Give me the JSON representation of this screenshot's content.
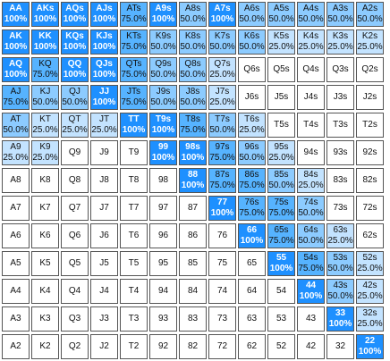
{
  "grid": {
    "rows": [
      [
        {
          "hand": "AA",
          "freq": "100%"
        },
        {
          "hand": "AKs",
          "freq": "100%"
        },
        {
          "hand": "AQs",
          "freq": "100%"
        },
        {
          "hand": "AJs",
          "freq": "100%"
        },
        {
          "hand": "ATs",
          "freq": "75.0%"
        },
        {
          "hand": "A9s",
          "freq": "100%"
        },
        {
          "hand": "A8s",
          "freq": "50.0%"
        },
        {
          "hand": "A7s",
          "freq": "100%"
        },
        {
          "hand": "A6s",
          "freq": "50.0%"
        },
        {
          "hand": "A5s",
          "freq": "50.0%"
        },
        {
          "hand": "A4s",
          "freq": "50.0%"
        },
        {
          "hand": "A3s",
          "freq": "50.0%"
        },
        {
          "hand": "A2s",
          "freq": "50.0%"
        }
      ],
      [
        {
          "hand": "AK",
          "freq": "100%"
        },
        {
          "hand": "KK",
          "freq": "100%"
        },
        {
          "hand": "KQs",
          "freq": "100%"
        },
        {
          "hand": "KJs",
          "freq": "100%"
        },
        {
          "hand": "KTs",
          "freq": "75.0%"
        },
        {
          "hand": "K9s",
          "freq": "50.0%"
        },
        {
          "hand": "K8s",
          "freq": "50.0%"
        },
        {
          "hand": "K7s",
          "freq": "50.0%"
        },
        {
          "hand": "K6s",
          "freq": "50.0%"
        },
        {
          "hand": "K5s",
          "freq": "25.0%"
        },
        {
          "hand": "K4s",
          "freq": "25.0%"
        },
        {
          "hand": "K3s",
          "freq": "25.0%"
        },
        {
          "hand": "K2s",
          "freq": "25.0%"
        }
      ],
      [
        {
          "hand": "AQ",
          "freq": "100%"
        },
        {
          "hand": "KQ",
          "freq": "75.0%"
        },
        {
          "hand": "QQ",
          "freq": "100%"
        },
        {
          "hand": "QJs",
          "freq": "100%"
        },
        {
          "hand": "QTs",
          "freq": "75.0%"
        },
        {
          "hand": "Q9s",
          "freq": "50.0%"
        },
        {
          "hand": "Q8s",
          "freq": "50.0%"
        },
        {
          "hand": "Q7s",
          "freq": "25.0%"
        },
        {
          "hand": "Q6s",
          "freq": ""
        },
        {
          "hand": "Q5s",
          "freq": ""
        },
        {
          "hand": "Q4s",
          "freq": ""
        },
        {
          "hand": "Q3s",
          "freq": ""
        },
        {
          "hand": "Q2s",
          "freq": ""
        }
      ],
      [
        {
          "hand": "AJ",
          "freq": "75.0%"
        },
        {
          "hand": "KJ",
          "freq": "50.0%"
        },
        {
          "hand": "QJ",
          "freq": "50.0%"
        },
        {
          "hand": "JJ",
          "freq": "100%"
        },
        {
          "hand": "JTs",
          "freq": "75.0%"
        },
        {
          "hand": "J9s",
          "freq": "50.0%"
        },
        {
          "hand": "J8s",
          "freq": "50.0%"
        },
        {
          "hand": "J7s",
          "freq": "25.0%"
        },
        {
          "hand": "J6s",
          "freq": ""
        },
        {
          "hand": "J5s",
          "freq": ""
        },
        {
          "hand": "J4s",
          "freq": ""
        },
        {
          "hand": "J3s",
          "freq": ""
        },
        {
          "hand": "J2s",
          "freq": ""
        }
      ],
      [
        {
          "hand": "AT",
          "freq": "50.0%"
        },
        {
          "hand": "KT",
          "freq": "25.0%"
        },
        {
          "hand": "QT",
          "freq": "25.0%"
        },
        {
          "hand": "JT",
          "freq": "25.0%"
        },
        {
          "hand": "TT",
          "freq": "100%"
        },
        {
          "hand": "T9s",
          "freq": "100%"
        },
        {
          "hand": "T8s",
          "freq": "75.0%"
        },
        {
          "hand": "T7s",
          "freq": "50.0%"
        },
        {
          "hand": "T6s",
          "freq": "25.0%"
        },
        {
          "hand": "T5s",
          "freq": ""
        },
        {
          "hand": "T4s",
          "freq": ""
        },
        {
          "hand": "T3s",
          "freq": ""
        },
        {
          "hand": "T2s",
          "freq": ""
        }
      ],
      [
        {
          "hand": "A9",
          "freq": "25.0%"
        },
        {
          "hand": "K9",
          "freq": "25.0%"
        },
        {
          "hand": "Q9",
          "freq": ""
        },
        {
          "hand": "J9",
          "freq": ""
        },
        {
          "hand": "T9",
          "freq": ""
        },
        {
          "hand": "99",
          "freq": "100%"
        },
        {
          "hand": "98s",
          "freq": "100%"
        },
        {
          "hand": "97s",
          "freq": "75.0%"
        },
        {
          "hand": "96s",
          "freq": "50.0%"
        },
        {
          "hand": "95s",
          "freq": "25.0%"
        },
        {
          "hand": "94s",
          "freq": ""
        },
        {
          "hand": "93s",
          "freq": ""
        },
        {
          "hand": "92s",
          "freq": ""
        }
      ],
      [
        {
          "hand": "A8",
          "freq": ""
        },
        {
          "hand": "K8",
          "freq": ""
        },
        {
          "hand": "Q8",
          "freq": ""
        },
        {
          "hand": "J8",
          "freq": ""
        },
        {
          "hand": "T8",
          "freq": ""
        },
        {
          "hand": "98",
          "freq": ""
        },
        {
          "hand": "88",
          "freq": "100%"
        },
        {
          "hand": "87s",
          "freq": "75.0%"
        },
        {
          "hand": "86s",
          "freq": "75.0%"
        },
        {
          "hand": "85s",
          "freq": "50.0%"
        },
        {
          "hand": "84s",
          "freq": "25.0%"
        },
        {
          "hand": "83s",
          "freq": ""
        },
        {
          "hand": "82s",
          "freq": ""
        }
      ],
      [
        {
          "hand": "A7",
          "freq": ""
        },
        {
          "hand": "K7",
          "freq": ""
        },
        {
          "hand": "Q7",
          "freq": ""
        },
        {
          "hand": "J7",
          "freq": ""
        },
        {
          "hand": "T7",
          "freq": ""
        },
        {
          "hand": "97",
          "freq": ""
        },
        {
          "hand": "87",
          "freq": ""
        },
        {
          "hand": "77",
          "freq": "100%"
        },
        {
          "hand": "76s",
          "freq": "75.0%"
        },
        {
          "hand": "75s",
          "freq": "75.0%"
        },
        {
          "hand": "74s",
          "freq": "50.0%"
        },
        {
          "hand": "73s",
          "freq": ""
        },
        {
          "hand": "72s",
          "freq": ""
        }
      ],
      [
        {
          "hand": "A6",
          "freq": ""
        },
        {
          "hand": "K6",
          "freq": ""
        },
        {
          "hand": "Q6",
          "freq": ""
        },
        {
          "hand": "J6",
          "freq": ""
        },
        {
          "hand": "T6",
          "freq": ""
        },
        {
          "hand": "96",
          "freq": ""
        },
        {
          "hand": "86",
          "freq": ""
        },
        {
          "hand": "76",
          "freq": ""
        },
        {
          "hand": "66",
          "freq": "100%"
        },
        {
          "hand": "65s",
          "freq": "75.0%"
        },
        {
          "hand": "64s",
          "freq": "50.0%"
        },
        {
          "hand": "63s",
          "freq": "25.0%"
        },
        {
          "hand": "62s",
          "freq": ""
        }
      ],
      [
        {
          "hand": "A5",
          "freq": ""
        },
        {
          "hand": "K5",
          "freq": ""
        },
        {
          "hand": "Q5",
          "freq": ""
        },
        {
          "hand": "J5",
          "freq": ""
        },
        {
          "hand": "T5",
          "freq": ""
        },
        {
          "hand": "95",
          "freq": ""
        },
        {
          "hand": "85",
          "freq": ""
        },
        {
          "hand": "75",
          "freq": ""
        },
        {
          "hand": "65",
          "freq": ""
        },
        {
          "hand": "55",
          "freq": "100%"
        },
        {
          "hand": "54s",
          "freq": "75.0%"
        },
        {
          "hand": "53s",
          "freq": "50.0%"
        },
        {
          "hand": "52s",
          "freq": "25.0%"
        }
      ],
      [
        {
          "hand": "A4",
          "freq": ""
        },
        {
          "hand": "K4",
          "freq": ""
        },
        {
          "hand": "Q4",
          "freq": ""
        },
        {
          "hand": "J4",
          "freq": ""
        },
        {
          "hand": "T4",
          "freq": ""
        },
        {
          "hand": "94",
          "freq": ""
        },
        {
          "hand": "84",
          "freq": ""
        },
        {
          "hand": "74",
          "freq": ""
        },
        {
          "hand": "64",
          "freq": ""
        },
        {
          "hand": "54",
          "freq": ""
        },
        {
          "hand": "44",
          "freq": "100%"
        },
        {
          "hand": "43s",
          "freq": "50.0%"
        },
        {
          "hand": "42s",
          "freq": "25.0%"
        }
      ],
      [
        {
          "hand": "A3",
          "freq": ""
        },
        {
          "hand": "K3",
          "freq": ""
        },
        {
          "hand": "Q3",
          "freq": ""
        },
        {
          "hand": "J3",
          "freq": ""
        },
        {
          "hand": "T3",
          "freq": ""
        },
        {
          "hand": "93",
          "freq": ""
        },
        {
          "hand": "83",
          "freq": ""
        },
        {
          "hand": "73",
          "freq": ""
        },
        {
          "hand": "63",
          "freq": ""
        },
        {
          "hand": "53",
          "freq": ""
        },
        {
          "hand": "43",
          "freq": ""
        },
        {
          "hand": "33",
          "freq": "100%"
        },
        {
          "hand": "32s",
          "freq": "25.0%"
        }
      ],
      [
        {
          "hand": "A2",
          "freq": ""
        },
        {
          "hand": "K2",
          "freq": ""
        },
        {
          "hand": "Q2",
          "freq": ""
        },
        {
          "hand": "J2",
          "freq": ""
        },
        {
          "hand": "T2",
          "freq": ""
        },
        {
          "hand": "92",
          "freq": ""
        },
        {
          "hand": "82",
          "freq": ""
        },
        {
          "hand": "72",
          "freq": ""
        },
        {
          "hand": "62",
          "freq": ""
        },
        {
          "hand": "52",
          "freq": ""
        },
        {
          "hand": "42",
          "freq": ""
        },
        {
          "hand": "32",
          "freq": ""
        },
        {
          "hand": "22",
          "freq": "100%"
        }
      ]
    ]
  },
  "colors": {
    "full": "#1e90ff",
    "three_quarter": "#56b3ff",
    "half": "#8ccbff",
    "quarter": "#c3e3ff",
    "none": "#ffffff",
    "border": "#555555"
  }
}
